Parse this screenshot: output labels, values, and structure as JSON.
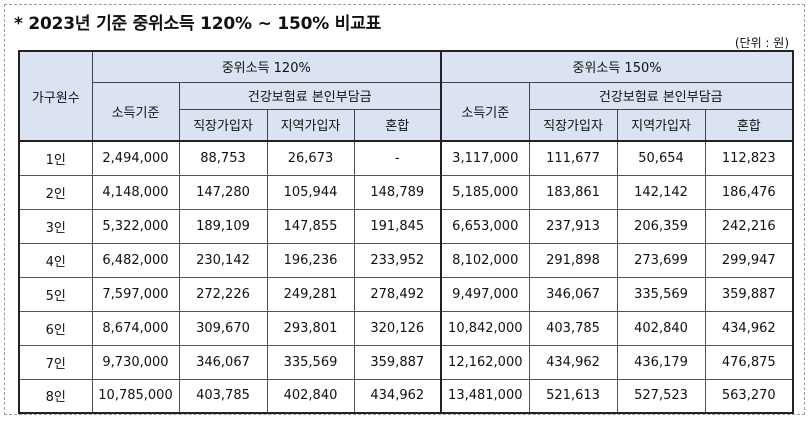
{
  "title": "* 2023년 기준 중위소득 120% ~ 150% 비교표",
  "unit": "(단위 : 원)",
  "headers": {
    "household": "가구원수",
    "group120": "중위소득 120%",
    "group150": "중위소득 150%",
    "income_basis": "소득기준",
    "premium": "건강보험료 본인부담금",
    "employee": "직장가입자",
    "regional": "지역가입자",
    "mixed": "혼합"
  },
  "rows": [
    [
      "1인",
      "2,494,000",
      "88,753",
      "26,673",
      "-",
      "3,117,000",
      "111,677",
      "50,654",
      "112,823"
    ],
    [
      "2인",
      "4,148,000",
      "147,280",
      "105,944",
      "148,789",
      "5,185,000",
      "183,861",
      "142,142",
      "186,476"
    ],
    [
      "3인",
      "5,322,000",
      "189,109",
      "147,855",
      "191,845",
      "6,653,000",
      "237,913",
      "206,359",
      "242,216"
    ],
    [
      "4인",
      "6,482,000",
      "230,142",
      "196,236",
      "233,952",
      "8,102,000",
      "291,898",
      "273,699",
      "299,947"
    ],
    [
      "5인",
      "7,597,000",
      "272,226",
      "249,281",
      "278,492",
      "9,497,000",
      "346,067",
      "335,569",
      "359,887"
    ],
    [
      "6인",
      "8,674,000",
      "309,670",
      "293,801",
      "320,126",
      "10,842,000",
      "403,785",
      "402,840",
      "434,962"
    ],
    [
      "7인",
      "9,730,000",
      "346,067",
      "335,569",
      "359,887",
      "12,162,000",
      "434,962",
      "436,179",
      "476,875"
    ],
    [
      "8인",
      "10,785,000",
      "403,785",
      "402,840",
      "434,962",
      "13,481,000",
      "521,613",
      "527,523",
      "563,270"
    ]
  ]
}
